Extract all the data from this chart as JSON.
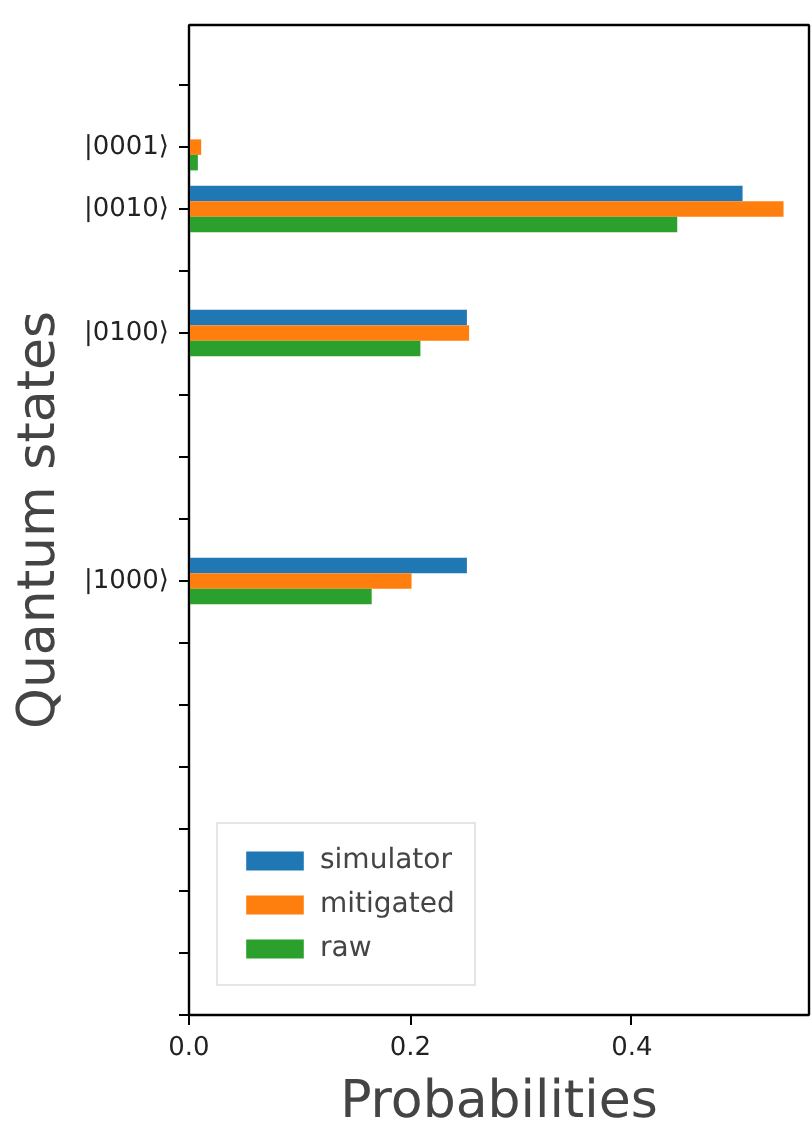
{
  "chart_data": {
    "type": "bar",
    "orientation": "horizontal",
    "xlabel": "Probabilities",
    "ylabel": "Quantum states",
    "categories": [
      null,
      "|0001⟩",
      "|0010⟩",
      null,
      "|0100⟩",
      null,
      null,
      null,
      "|1000⟩",
      null,
      null,
      null,
      null,
      null,
      null,
      null
    ],
    "series": [
      {
        "name": "simulator",
        "color": "#1f77b4",
        "values": [
          0,
          0,
          0.5,
          0,
          0.251,
          0,
          0,
          0,
          0.251,
          0,
          0,
          0,
          0,
          0,
          0,
          0
        ]
      },
      {
        "name": "mitigated",
        "color": "#ff7f0e",
        "values": [
          0,
          0.011,
          0.537,
          0,
          0.253,
          0,
          0,
          0,
          0.201,
          0,
          0,
          0,
          0,
          0,
          0,
          0
        ]
      },
      {
        "name": "raw",
        "color": "#2ca02c",
        "values": [
          0,
          0.008,
          0.441,
          0,
          0.209,
          0,
          0,
          0,
          0.165,
          0,
          0,
          0,
          0,
          0,
          0,
          0
        ]
      }
    ],
    "xlim": [
      0,
      0.56
    ],
    "xticks": [
      {
        "value": 0,
        "label": "0.0"
      },
      {
        "value": 0.2,
        "label": "0.2"
      },
      {
        "value": 0.4,
        "label": "0.4"
      }
    ],
    "grid": false,
    "legend": "bottom left"
  }
}
